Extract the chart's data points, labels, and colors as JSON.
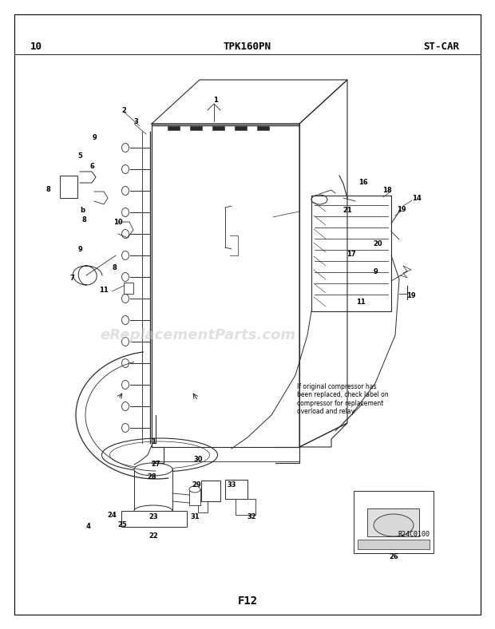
{
  "page_number": "10",
  "model_code": "TPK160PN",
  "section_code": "ST-CAR",
  "page_label": "F12",
  "watermark": "eReplacementParts.com",
  "note_text": "If original compressor has\nbeen replaced, check label on\ncompressor for replacement\noverload and relay.",
  "ref_code": "R24C0100",
  "bg_color": "#ffffff",
  "border_color": "#000000",
  "diagram_color": "#2a2a2a",
  "title_fontsize": 9,
  "label_fontsize": 6,
  "watermark_color": "#c8c8c8",
  "watermark_fontsize": 13
}
